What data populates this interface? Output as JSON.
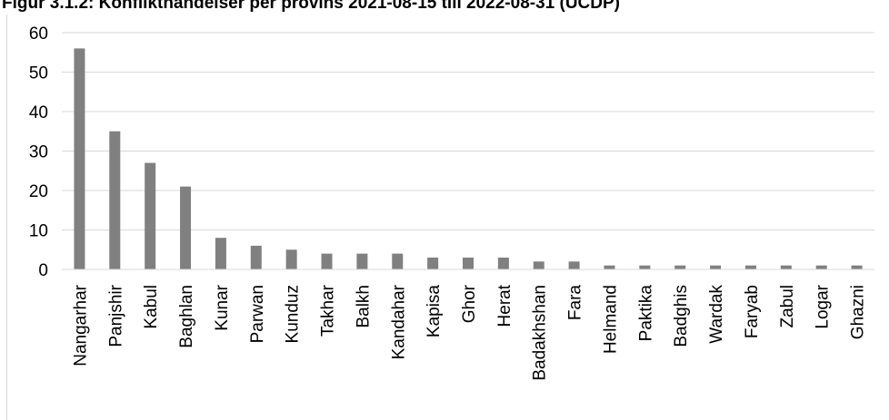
{
  "chart_data": {
    "type": "bar",
    "title": "Figur 3.1.2: Konflikthändelser per provins 2021-08-15 till 2022-08-31 (UCDP)",
    "xlabel": "",
    "ylabel": "",
    "ylim": [
      0,
      60
    ],
    "yticks": [
      0,
      10,
      20,
      30,
      40,
      50,
      60
    ],
    "grid": true,
    "legend": "none",
    "bar_color": "#808080",
    "grid_color": "#d9d9d9",
    "categories": [
      "Nangarhar",
      "Panjshir",
      "Kabul",
      "Baghlan",
      "Kunar",
      "Parwan",
      "Kunduz",
      "Takhar",
      "Balkh",
      "Kandahar",
      "Kapisa",
      "Ghor",
      "Herat",
      "Badakhshan",
      "Fara",
      "Helmand",
      "Paktika",
      "Badghis",
      "Wardak",
      "Faryab",
      "Zabul",
      "Logar",
      "Ghazni"
    ],
    "values": [
      56,
      35,
      27,
      21,
      8,
      6,
      5,
      4,
      4,
      4,
      3,
      3,
      3,
      2,
      2,
      1,
      1,
      1,
      1,
      1,
      1,
      1,
      1
    ]
  }
}
